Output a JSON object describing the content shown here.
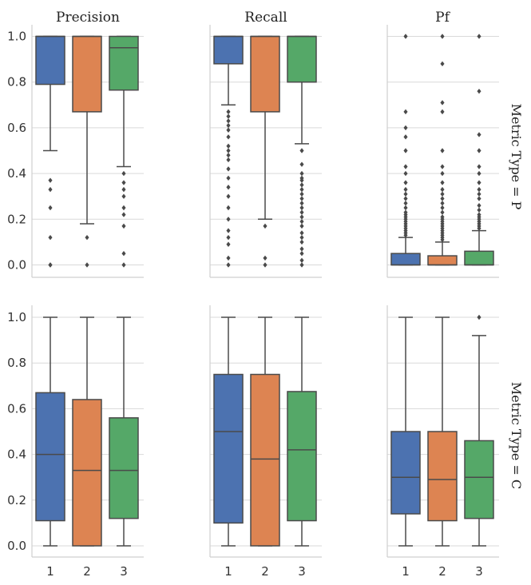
{
  "chart_data": {
    "type": "box",
    "col_titles": [
      "Precision",
      "Recall",
      "Pf"
    ],
    "row_titles": [
      "Metric Type = P",
      "Metric Type = C"
    ],
    "x_ticks": [
      "1",
      "2",
      "3"
    ],
    "y_ticks": [
      "0.0",
      "0.2",
      "0.4",
      "0.6",
      "0.8",
      "1.0"
    ],
    "ylim": [
      0,
      1
    ],
    "colors": [
      "#4c72b0",
      "#dd8452",
      "#55a868"
    ],
    "line_color": "#4a4a4a",
    "grid_color": "#d9d9d9",
    "panels": [
      {
        "row": 0,
        "col": 0,
        "boxes": [
          {
            "group": "1",
            "q1": 0.79,
            "median": 1.0,
            "q3": 1.0,
            "whisker_low": 0.5,
            "whisker_high": 1.0,
            "fliers": [
              0.0,
              0.0,
              0.12,
              0.25,
              0.33,
              0.37
            ]
          },
          {
            "group": "2",
            "q1": 0.67,
            "median": 1.0,
            "q3": 1.0,
            "whisker_low": 0.18,
            "whisker_high": 1.0,
            "fliers": [
              0.0,
              0.12
            ]
          },
          {
            "group": "3",
            "q1": 0.765,
            "median": 0.95,
            "q3": 1.0,
            "whisker_low": 0.43,
            "whisker_high": 1.0,
            "fliers": [
              0.0,
              0.05,
              0.17,
              0.22,
              0.25,
              0.3,
              0.33,
              0.36,
              0.4
            ]
          }
        ]
      },
      {
        "row": 0,
        "col": 1,
        "boxes": [
          {
            "group": "1",
            "q1": 0.88,
            "median": 1.0,
            "q3": 1.0,
            "whisker_low": 0.7,
            "whisker_high": 1.0,
            "fliers": [
              0.0,
              0.03,
              0.09,
              0.12,
              0.15,
              0.2,
              0.25,
              0.3,
              0.34,
              0.38,
              0.42,
              0.46,
              0.48,
              0.5,
              0.52,
              0.56,
              0.59,
              0.61,
              0.63,
              0.65,
              0.67
            ]
          },
          {
            "group": "2",
            "q1": 0.67,
            "median": 1.0,
            "q3": 1.0,
            "whisker_low": 0.2,
            "whisker_high": 1.0,
            "fliers": [
              0.0,
              0.03,
              0.17
            ]
          },
          {
            "group": "3",
            "q1": 0.8,
            "median": 1.0,
            "q3": 1.0,
            "whisker_low": 0.53,
            "whisker_high": 1.0,
            "fliers": [
              0.0,
              0.02,
              0.05,
              0.07,
              0.1,
              0.12,
              0.14,
              0.17,
              0.19,
              0.21,
              0.23,
              0.25,
              0.27,
              0.29,
              0.31,
              0.33,
              0.35,
              0.37,
              0.38,
              0.4,
              0.44,
              0.5
            ]
          }
        ]
      },
      {
        "row": 0,
        "col": 2,
        "boxes": [
          {
            "group": "1",
            "q1": 0.0,
            "median": 0.0,
            "q3": 0.05,
            "whisker_low": 0.0,
            "whisker_high": 0.12,
            "fliers": [
              0.13,
              0.14,
              0.15,
              0.16,
              0.17,
              0.18,
              0.19,
              0.2,
              0.21,
              0.22,
              0.23,
              0.25,
              0.27,
              0.29,
              0.31,
              0.33,
              0.36,
              0.4,
              0.43,
              0.5,
              0.56,
              0.6,
              0.67,
              1.0
            ]
          },
          {
            "group": "2",
            "q1": 0.0,
            "median": 0.0,
            "q3": 0.04,
            "whisker_low": 0.0,
            "whisker_high": 0.1,
            "fliers": [
              0.11,
              0.12,
              0.13,
              0.14,
              0.15,
              0.16,
              0.17,
              0.18,
              0.19,
              0.2,
              0.21,
              0.23,
              0.25,
              0.27,
              0.29,
              0.31,
              0.33,
              0.36,
              0.4,
              0.43,
              0.5,
              0.67,
              0.71,
              0.88,
              1.0
            ]
          },
          {
            "group": "3",
            "q1": 0.0,
            "median": 0.0,
            "q3": 0.06,
            "whisker_low": 0.0,
            "whisker_high": 0.15,
            "fliers": [
              0.16,
              0.17,
              0.18,
              0.19,
              0.2,
              0.21,
              0.22,
              0.24,
              0.26,
              0.29,
              0.31,
              0.33,
              0.36,
              0.4,
              0.43,
              0.5,
              0.57,
              0.76,
              1.0
            ]
          }
        ]
      },
      {
        "row": 1,
        "col": 0,
        "boxes": [
          {
            "group": "1",
            "q1": 0.11,
            "median": 0.4,
            "q3": 0.67,
            "whisker_low": 0.0,
            "whisker_high": 1.0,
            "fliers": []
          },
          {
            "group": "2",
            "q1": 0.0,
            "median": 0.33,
            "q3": 0.64,
            "whisker_low": 0.0,
            "whisker_high": 1.0,
            "fliers": []
          },
          {
            "group": "3",
            "q1": 0.12,
            "median": 0.33,
            "q3": 0.56,
            "whisker_low": 0.0,
            "whisker_high": 1.0,
            "fliers": []
          }
        ]
      },
      {
        "row": 1,
        "col": 1,
        "boxes": [
          {
            "group": "1",
            "q1": 0.1,
            "median": 0.5,
            "q3": 0.75,
            "whisker_low": 0.0,
            "whisker_high": 1.0,
            "fliers": []
          },
          {
            "group": "2",
            "q1": 0.0,
            "median": 0.38,
            "q3": 0.75,
            "whisker_low": 0.0,
            "whisker_high": 1.0,
            "fliers": []
          },
          {
            "group": "3",
            "q1": 0.11,
            "median": 0.42,
            "q3": 0.675,
            "whisker_low": 0.0,
            "whisker_high": 1.0,
            "fliers": []
          }
        ]
      },
      {
        "row": 1,
        "col": 2,
        "boxes": [
          {
            "group": "1",
            "q1": 0.14,
            "median": 0.3,
            "q3": 0.5,
            "whisker_low": 0.0,
            "whisker_high": 1.0,
            "fliers": []
          },
          {
            "group": "2",
            "q1": 0.11,
            "median": 0.29,
            "q3": 0.5,
            "whisker_low": 0.0,
            "whisker_high": 1.0,
            "fliers": []
          },
          {
            "group": "3",
            "q1": 0.12,
            "median": 0.3,
            "q3": 0.46,
            "whisker_low": 0.0,
            "whisker_high": 0.92,
            "fliers": [
              1.0
            ]
          }
        ]
      }
    ]
  }
}
